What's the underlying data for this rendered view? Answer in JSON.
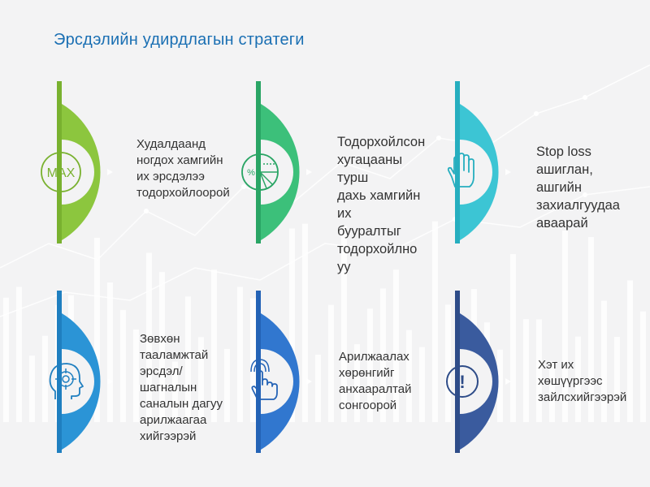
{
  "title": "Эрсдэлийн удирдлагын стратеги",
  "cards": [
    {
      "text": "Худалдаанд\nногдох хамгийн\nих эрсдэлээ\nтодорхойлоорой",
      "color": "#8cc63e",
      "color_dark": "#79b12f",
      "icon": "max-icon",
      "icon_label": "MAX"
    },
    {
      "text": "Тодорхойлсон\nхугацааны турш\nдахь хамгийн их\nбууралтыг\nтодорхойлно уу",
      "color": "#3cc07a",
      "color_dark": "#2aa565",
      "icon": "pie-chart-icon",
      "icon_label": "%"
    },
    {
      "text": "Stop loss\nашиглан,\nашгийн\nзахиалгуудаа\nаваарай",
      "color": "#3cc5d4",
      "color_dark": "#26aebf",
      "icon": "hand-stop-icon"
    },
    {
      "text": "Зөвхөн\nтааламжтай\nэрсдэл/шагналын\nсаналын дагуу\nарилжаагаа\nхийгээрэй",
      "color": "#2b94d6",
      "color_dark": "#1f7fc0",
      "icon": "head-target-icon"
    },
    {
      "text": "Арилжаалах\nхөрөнгийг\nанхааралтай\nсонгоорой",
      "color": "#3177cf",
      "color_dark": "#2463b6",
      "icon": "pointer-hand-icon"
    },
    {
      "text": "Хэт их\nхөшүүргээс\nзайлсхийгээрэй",
      "color": "#3a5b9e",
      "color_dark": "#2e4c88",
      "icon": "warning-icon",
      "icon_label": "!"
    }
  ]
}
